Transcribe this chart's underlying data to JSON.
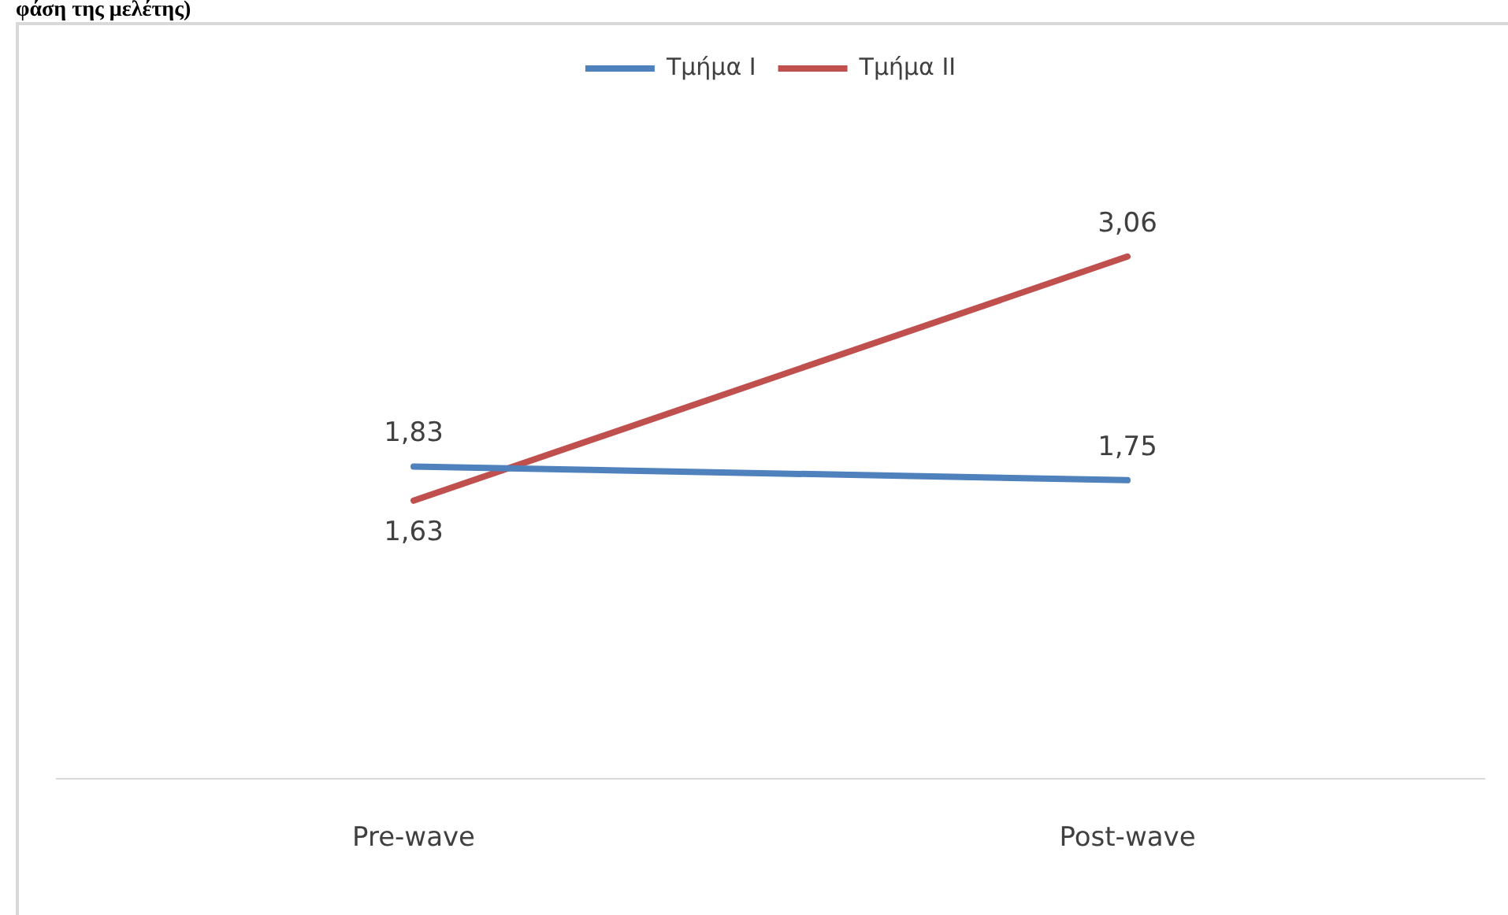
{
  "chart_data": {
    "type": "line",
    "annotations": [
      "φάση της μελέτης)"
    ],
    "categories": [
      "Pre-wave",
      "Post-wave"
    ],
    "series": [
      {
        "name": "Τμήμα I",
        "color": "#4f81bd",
        "values": [
          1.83,
          1.75
        ],
        "value_labels": [
          "1,83",
          "1,75"
        ]
      },
      {
        "name": "Τμήμα II",
        "color": "#c0504d",
        "values": [
          1.63,
          3.06
        ],
        "value_labels": [
          "1,63",
          "3,06"
        ]
      }
    ],
    "legend": "top",
    "grid": false,
    "marker": "none",
    "line_style": "solid"
  }
}
